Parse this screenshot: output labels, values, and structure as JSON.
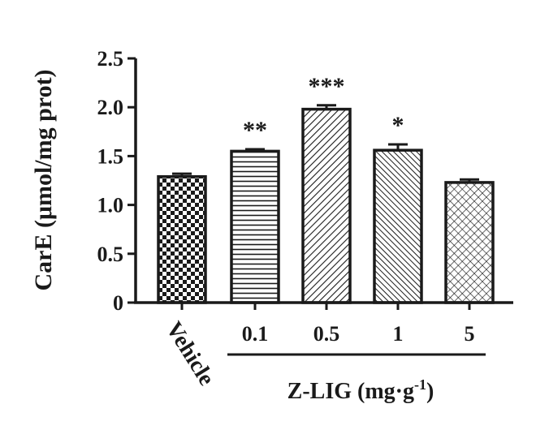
{
  "chart_data": {
    "type": "bar",
    "categories": [
      "Vehicle",
      "0.1",
      "0.5",
      "1",
      "5"
    ],
    "values": [
      1.29,
      1.55,
      1.98,
      1.56,
      1.23
    ],
    "errors": [
      0.03,
      0.02,
      0.04,
      0.06,
      0.03
    ],
    "significance": [
      "",
      "**",
      "***",
      "*",
      ""
    ],
    "patterns": [
      "checkerboard",
      "horizontal-lines",
      "diagonal-lines",
      "dense-diagonal-lines",
      "crosshatch"
    ],
    "ylabel": "CarE (μmol/mg prot)",
    "group_label": "Z-LIG (mg·g",
    "group_label_sup": "-1",
    "group_label_end": ")",
    "ylim": [
      0,
      2.5
    ],
    "yticks": [
      "0",
      "0.5",
      "1.0",
      "1.5",
      "2.0",
      "2.5"
    ],
    "grid": false,
    "colors": {
      "ink": "#1a1a1a",
      "fill": "#ffffff"
    }
  }
}
